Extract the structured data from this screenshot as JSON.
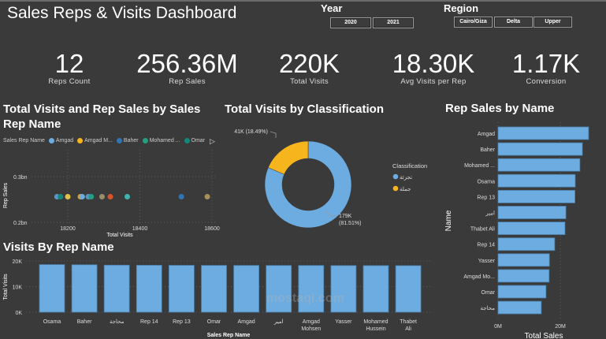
{
  "header": {
    "title": "Sales Reps & Visits Dashboard"
  },
  "slicers": {
    "year": {
      "label": "Year",
      "options": [
        "2020",
        "2021"
      ]
    },
    "region": {
      "label": "Region",
      "options": [
        "Cairo/Giza",
        "Delta",
        "Upper"
      ]
    }
  },
  "kpis": [
    {
      "value": "12",
      "label": "Reps Count"
    },
    {
      "value": "256.36M",
      "label": "Rep Sales"
    },
    {
      "value": "220K",
      "label": "Total Visits"
    },
    {
      "value": "18.30K",
      "label": "Avg Visits per Rep"
    },
    {
      "value": "1.17K",
      "label": "Conversion"
    }
  ],
  "watermark": "mostaql.com",
  "colors": {
    "background": "#3a3a3a",
    "bar": "#6cace0",
    "bar_edge": "#4a7eaa",
    "donut_secondary": "#f7b51d",
    "grid": "#5a5a5a"
  },
  "chart_data": [
    {
      "type": "scatter",
      "title": "Total Visits and Rep Sales by Sales Rep Name",
      "xlabel": "Total Visits",
      "ylabel": "Rep Sales",
      "x_ticks": [
        "18200",
        "18400",
        "18600"
      ],
      "y_ticks": [
        "0.2bn",
        "0.3bn"
      ],
      "xlim": [
        18000,
        18600
      ],
      "ylim_bn": [
        0.2,
        0.3
      ],
      "grid": true,
      "legend": {
        "title": "Sales Rep Name",
        "placement": "top",
        "entries": [
          {
            "name": "Amgad",
            "color": "#6cace0"
          },
          {
            "name": "Amgad M...",
            "color": "#f7b51d"
          },
          {
            "name": "Baher",
            "color": "#2f74b5"
          },
          {
            "name": "Mohamed ...",
            "color": "#21a084"
          },
          {
            "name": "Omar",
            "color": "#13877a"
          }
        ]
      },
      "points": [
        {
          "x": 18170,
          "y": 0.256,
          "color": "#5b95c8"
        },
        {
          "x": 18180,
          "y": 0.256,
          "color": "#13877a"
        },
        {
          "x": 18200,
          "y": 0.256,
          "color": "#e0c24a"
        },
        {
          "x": 18235,
          "y": 0.256,
          "color": "#d2a33a"
        },
        {
          "x": 18240,
          "y": 0.256,
          "color": "#6cace0"
        },
        {
          "x": 18257,
          "y": 0.256,
          "color": "#5b95c8"
        },
        {
          "x": 18265,
          "y": 0.256,
          "color": "#21a084"
        },
        {
          "x": 18295,
          "y": 0.256,
          "color": "#9a8e6a"
        },
        {
          "x": 18318,
          "y": 0.256,
          "color": "#d6542a"
        },
        {
          "x": 18365,
          "y": 0.256,
          "color": "#3fb3b0"
        },
        {
          "x": 18515,
          "y": 0.256,
          "color": "#2f74b5"
        },
        {
          "x": 18587,
          "y": 0.256,
          "color": "#a88e5a"
        }
      ]
    },
    {
      "type": "pie",
      "donut": true,
      "title": "Total Visits by Classification",
      "legend": {
        "title": "Classification",
        "placement": "right"
      },
      "slices": [
        {
          "label": "تجزئة",
          "value": 179000,
          "display": "179K (81.51%)",
          "percent": 81.51,
          "color": "#6cace0"
        },
        {
          "label": "جملة",
          "value": 41000,
          "display": "41K (18.49%)",
          "percent": 18.49,
          "color": "#f7b51d"
        }
      ]
    },
    {
      "type": "bar",
      "orientation": "horizontal",
      "title": "Rep Sales by Name",
      "xlabel": "Total Sales",
      "ylabel": "Name",
      "x_ticks": [
        "0M",
        "20M"
      ],
      "xlim_millions": [
        0,
        30
      ],
      "categories": [
        "Amgad",
        "Baher",
        "Mohamed ...",
        "Osama",
        "Rep 13",
        "امير",
        "Thabet Ali",
        "Rep 14",
        "Yasser",
        "Amgad Mo...",
        "Omar",
        "محاجة"
      ],
      "values_millions": [
        29.1,
        27.1,
        26.3,
        24.8,
        24.7,
        21.8,
        21.5,
        18.2,
        16.5,
        16.4,
        15.4,
        13.9
      ]
    },
    {
      "type": "bar",
      "orientation": "vertical",
      "title": "Visits By Rep Name",
      "xlabel": "Sales Rep Name",
      "ylabel": "Total Visits",
      "y_ticks": [
        "0K",
        "10K",
        "20K"
      ],
      "ylim": [
        0,
        20000
      ],
      "categories": [
        "Osama",
        "Baher",
        "محاجة",
        "Rep 14",
        "Rep 13",
        "Omar",
        "Amgad",
        "امير",
        "Amgad Mohsen",
        "Yasser",
        "Mohamed Hussein",
        "Thabet Ali"
      ],
      "values": [
        18590,
        18515,
        18365,
        18318,
        18295,
        18265,
        18257,
        18240,
        18235,
        18200,
        18180,
        18170
      ]
    }
  ]
}
